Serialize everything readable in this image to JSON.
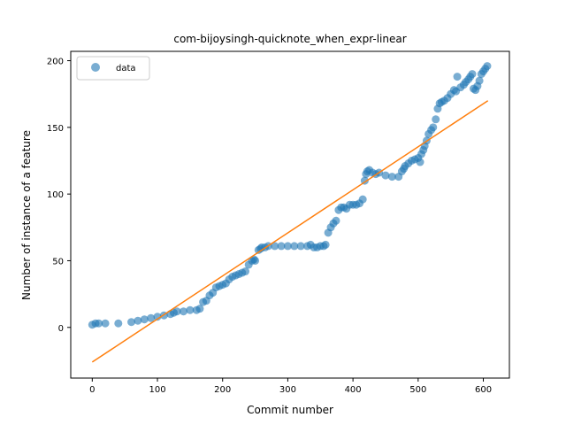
{
  "chart_data": {
    "type": "scatter",
    "title": "com-bijoysingh-quicknote_when_expr-linear",
    "xlabel": "Commit number",
    "ylabel": "Number of instance of a feature",
    "xlim": [
      -33,
      640
    ],
    "ylim": [
      -38,
      207
    ],
    "xticks": [
      0,
      100,
      200,
      300,
      400,
      500,
      600
    ],
    "yticks": [
      0,
      50,
      100,
      150,
      200
    ],
    "legend": {
      "position": "top-left",
      "entries": [
        "data"
      ]
    },
    "series": [
      {
        "name": "data",
        "kind": "scatter",
        "color": "#1f77b4",
        "x": [
          0,
          5,
          10,
          20,
          40,
          60,
          70,
          80,
          90,
          100,
          110,
          120,
          125,
          130,
          140,
          150,
          160,
          165,
          170,
          175,
          180,
          185,
          190,
          195,
          200,
          205,
          210,
          215,
          220,
          225,
          230,
          235,
          240,
          245,
          248,
          250,
          255,
          258,
          260,
          265,
          270,
          280,
          290,
          300,
          310,
          320,
          330,
          335,
          340,
          345,
          350,
          355,
          358,
          362,
          366,
          370,
          374,
          378,
          382,
          386,
          390,
          395,
          400,
          405,
          410,
          415,
          418,
          420,
          422,
          425,
          430,
          435,
          440,
          450,
          460,
          470,
          475,
          478,
          480,
          485,
          490,
          495,
          500,
          503,
          505,
          508,
          510,
          513,
          516,
          520,
          523,
          527,
          530,
          533,
          536,
          540,
          545,
          550,
          555,
          558,
          560,
          565,
          570,
          573,
          577,
          580,
          583,
          585,
          588,
          591,
          594,
          597,
          600,
          603,
          606
        ],
        "y": [
          2,
          3,
          3,
          3,
          3,
          4,
          5,
          6,
          7,
          8,
          9,
          10,
          11,
          12,
          12,
          13,
          13,
          14,
          19,
          20,
          24,
          26,
          30,
          31,
          32,
          33,
          36,
          38,
          39,
          40,
          41,
          42,
          47,
          50,
          51,
          50,
          58,
          59,
          60,
          60,
          61,
          61,
          61,
          61,
          61,
          61,
          61,
          62,
          60,
          60,
          61,
          61,
          62,
          71,
          75,
          78,
          80,
          88,
          90,
          90,
          89,
          92,
          92,
          92,
          93,
          96,
          110,
          115,
          117,
          118,
          116,
          115,
          116,
          114,
          113,
          113,
          117,
          119,
          121,
          123,
          125,
          126,
          127,
          124,
          130,
          133,
          136,
          140,
          145,
          148,
          150,
          156,
          164,
          168,
          169,
          170,
          172,
          175,
          178,
          177,
          188,
          180,
          182,
          184,
          186,
          188,
          190,
          179,
          178,
          181,
          185,
          190,
          192,
          194,
          196
        ]
      },
      {
        "name": "",
        "kind": "line",
        "color": "#ff7f0e",
        "x": [
          0,
          607
        ],
        "y": [
          -26,
          170
        ]
      }
    ]
  }
}
